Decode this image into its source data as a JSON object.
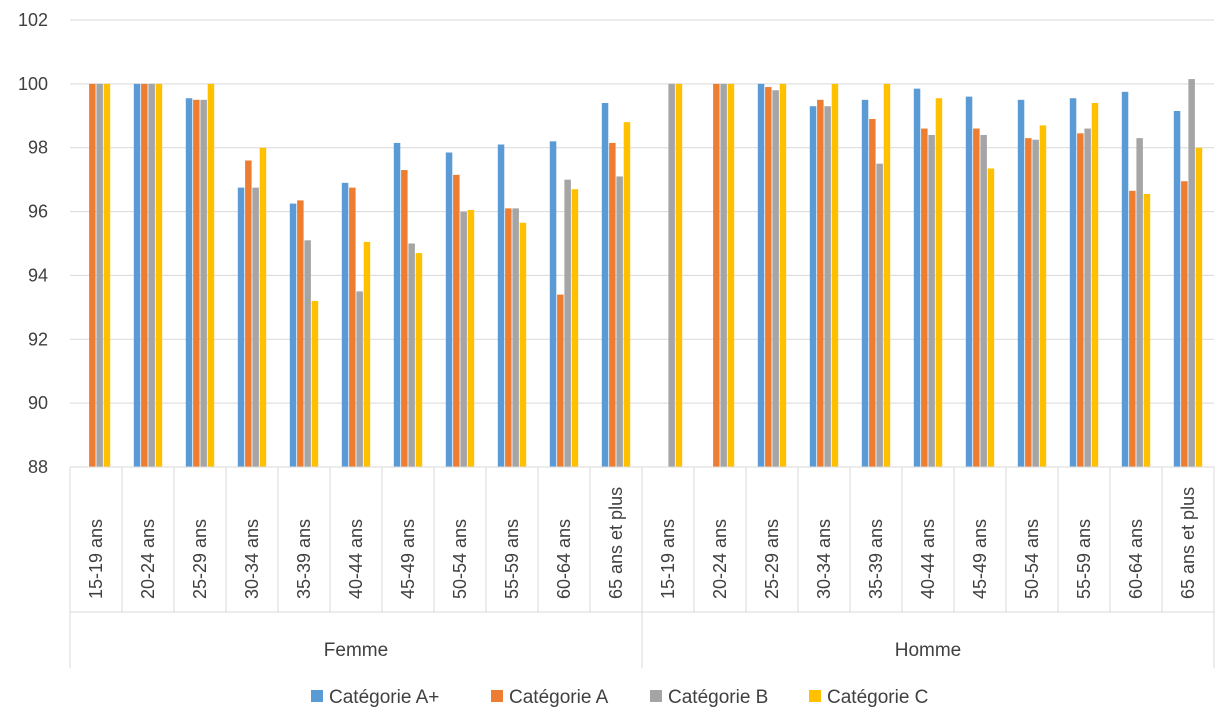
{
  "chart_data": {
    "type": "bar",
    "title": "",
    "xlabel": "",
    "ylabel": "",
    "ylim": [
      88,
      102
    ],
    "yticks": [
      88,
      90,
      92,
      94,
      96,
      98,
      100,
      102
    ],
    "grid": true,
    "legend_position": "bottom",
    "groups": [
      {
        "name": "Femme",
        "categories": [
          "15-19 ans",
          "20-24 ans",
          "25-29 ans",
          "30-34 ans",
          "35-39 ans",
          "40-44 ans",
          "45-49 ans",
          "50-54 ans",
          "55-59 ans",
          "60-64 ans",
          "65 ans et plus"
        ]
      },
      {
        "name": "Homme",
        "categories": [
          "15-19 ans",
          "20-24 ans",
          "25-29 ans",
          "30-34 ans",
          "35-39 ans",
          "40-44 ans",
          "45-49 ans",
          "50-54 ans",
          "55-59 ans",
          "60-64 ans",
          "65 ans et plus"
        ]
      }
    ],
    "series": [
      {
        "name": "Catégorie A+",
        "color": "#5B9BD5",
        "values": [
          null,
          100,
          99.55,
          96.75,
          96.25,
          96.9,
          98.15,
          97.85,
          98.1,
          98.2,
          99.4,
          null,
          null,
          100,
          99.3,
          99.5,
          99.85,
          99.6,
          99.5,
          99.55,
          99.75,
          99.15
        ]
      },
      {
        "name": "Catégorie A",
        "color": "#ED7D31",
        "values": [
          100,
          100,
          99.5,
          97.6,
          96.35,
          96.75,
          97.3,
          97.15,
          96.1,
          93.4,
          98.15,
          null,
          100,
          99.9,
          99.5,
          98.9,
          98.6,
          98.6,
          98.3,
          98.45,
          96.65,
          96.95
        ]
      },
      {
        "name": "Catégorie B",
        "color": "#A5A5A5",
        "values": [
          100,
          100,
          99.5,
          96.75,
          95.1,
          93.5,
          95.0,
          96.0,
          96.1,
          97.0,
          97.1,
          100,
          100,
          99.8,
          99.3,
          97.5,
          98.4,
          98.4,
          98.25,
          98.6,
          98.3,
          100.15
        ]
      },
      {
        "name": "Catégorie C",
        "color": "#FFC000",
        "values": [
          100,
          100,
          100,
          98.0,
          93.2,
          95.05,
          94.7,
          96.05,
          95.65,
          96.7,
          98.8,
          100,
          100,
          100,
          100,
          100,
          99.55,
          97.35,
          98.7,
          99.4,
          96.55,
          98.0
        ]
      }
    ]
  }
}
